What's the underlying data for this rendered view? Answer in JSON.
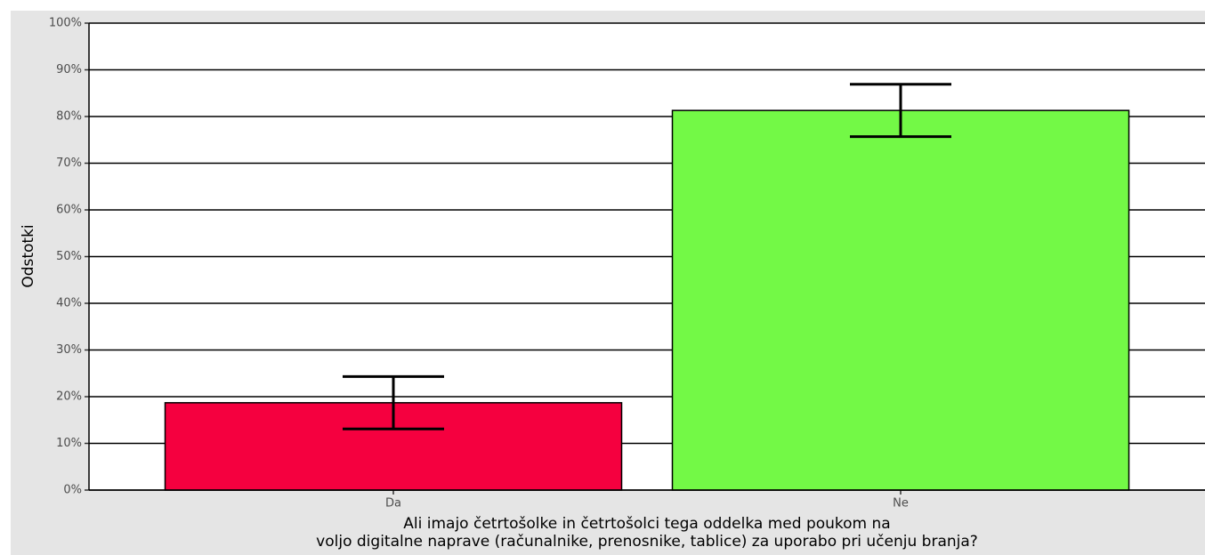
{
  "chart_data": {
    "type": "bar",
    "ylabel": "Odstotki",
    "xlabel": [
      "Ali imajo četrtošolke in četrtošolci tega oddelka med poukom na",
      "voljo digitalne naprave (računalnike, prenosnike, tablice) za uporabo pri učenju branja?"
    ],
    "categories": [
      "Da",
      "Ne"
    ],
    "values": [
      18.7,
      81.3
    ],
    "errors": [
      5.6,
      5.6
    ],
    "colors": [
      "#f5003f",
      "#73f946"
    ],
    "ylim": [
      0,
      100
    ],
    "yticks": [
      {
        "value": 0,
        "label": "0%"
      },
      {
        "value": 10,
        "label": "10%"
      },
      {
        "value": 20,
        "label": "20%"
      },
      {
        "value": 30,
        "label": "30%"
      },
      {
        "value": 40,
        "label": "40%"
      },
      {
        "value": 50,
        "label": "50%"
      },
      {
        "value": 60,
        "label": "60%"
      },
      {
        "value": 70,
        "label": "70%"
      },
      {
        "value": 80,
        "label": "80%"
      },
      {
        "value": 90,
        "label": "90%"
      },
      {
        "value": 100,
        "label": "100%"
      }
    ],
    "grid": true
  }
}
